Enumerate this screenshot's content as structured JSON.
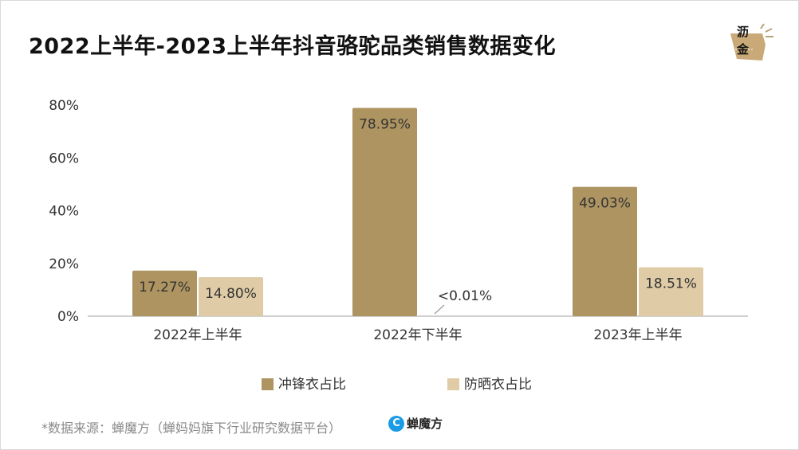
{
  "title": "2022上半年-2023上半年抖音骆驼品类销售数据变化",
  "logo": {
    "line1": "沥",
    "line2": "金"
  },
  "chart_data": {
    "type": "bar",
    "categories": [
      "2022年上半年",
      "2022年下半年",
      "2023年上半年"
    ],
    "series": [
      {
        "name": "冲锋衣占比",
        "color": "#ad9461",
        "values": [
          17.27,
          78.95,
          49.03
        ],
        "labels": [
          "17.27%",
          "78.95%",
          "49.03%"
        ]
      },
      {
        "name": "防晒衣占比",
        "color": "#dfcba6",
        "values": [
          14.8,
          0.01,
          18.51
        ],
        "labels": [
          "14.80%",
          "<0.01%",
          "18.51%"
        ]
      }
    ],
    "ylim": [
      0,
      80
    ],
    "yticks": [
      "0%",
      "20%",
      "40%",
      "60%",
      "80%"
    ],
    "ytick_values": [
      0,
      20,
      40,
      60,
      80
    ],
    "legend_position": "bottom-center"
  },
  "source": "*数据来源：蝉魔方（蝉妈妈旗下行业研究数据平台）",
  "brand": {
    "icon": "C",
    "name": "蝉魔方"
  }
}
